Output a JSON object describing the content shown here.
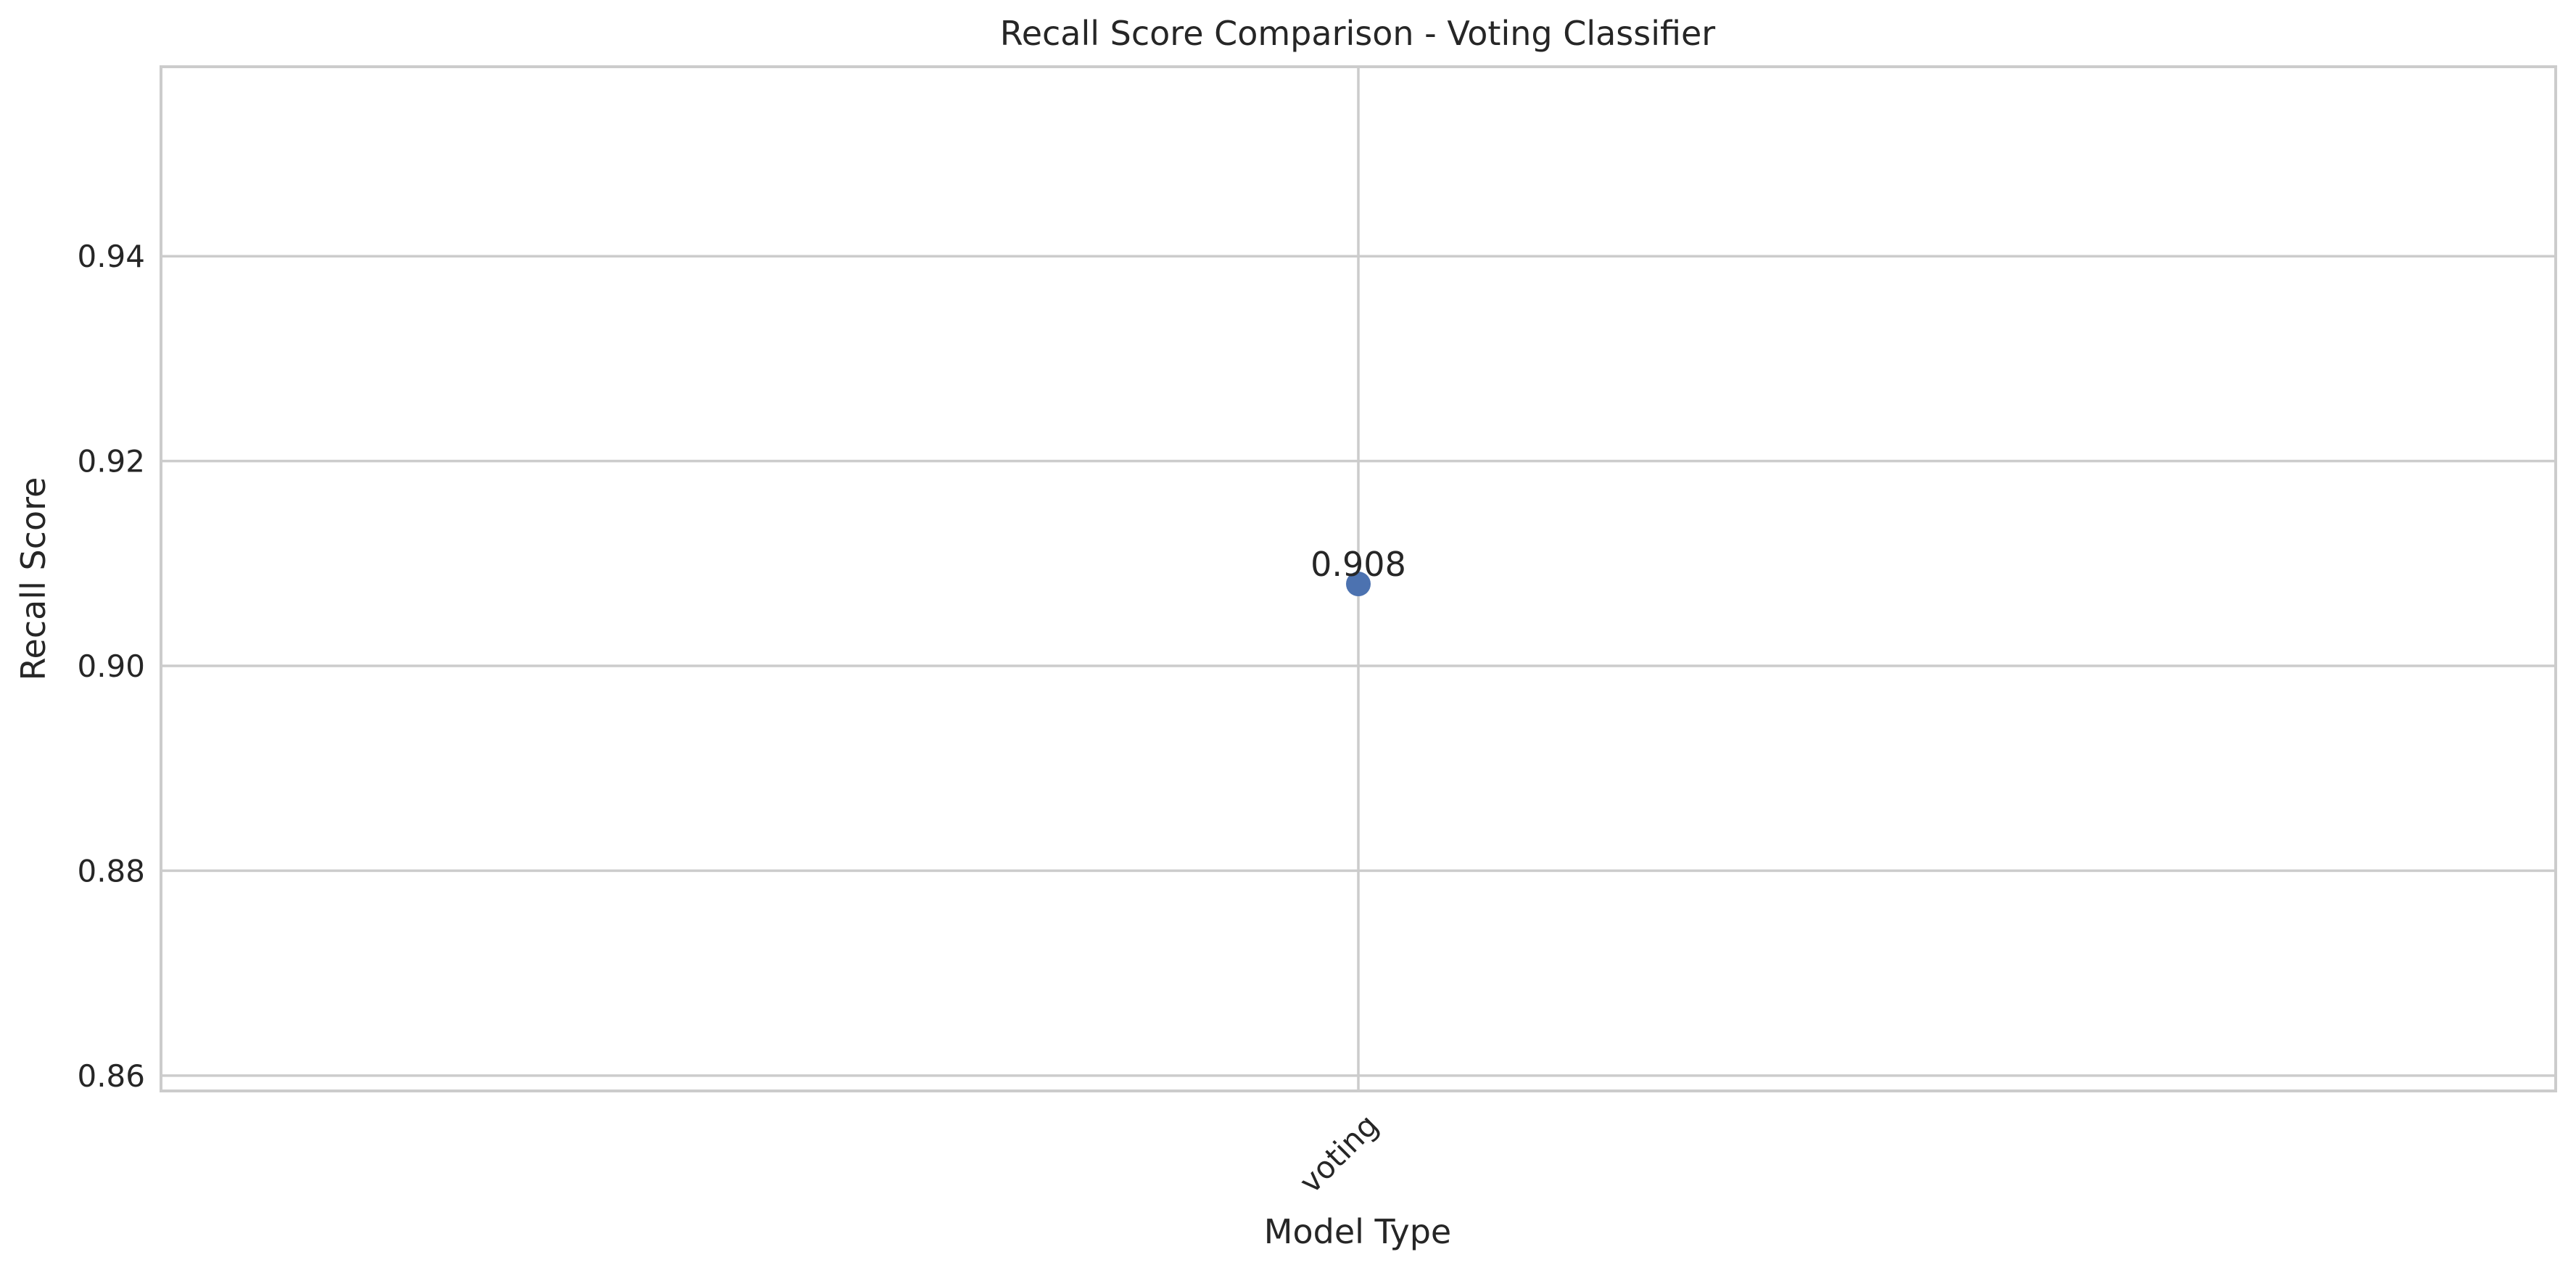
{
  "chart_data": {
    "type": "scatter",
    "title": "Recall Score Comparison - Voting Classifier",
    "xlabel": "Model Type",
    "ylabel": "Recall Score",
    "categories": [
      "voting"
    ],
    "series": [
      {
        "values": [
          0.908
        ],
        "data_labels": [
          "0.908"
        ],
        "color": "#4c72b0"
      }
    ],
    "ylim": [
      0.8585,
      0.9585
    ],
    "y_ticks": [
      0.86,
      0.88,
      0.9,
      0.92,
      0.94
    ],
    "y_tick_labels": [
      "0.86",
      "0.88",
      "0.90",
      "0.92",
      "0.94"
    ],
    "x_tick_rotation_deg": 45,
    "grid": true,
    "style": {
      "background": "#ffffff",
      "grid_color": "#cccccc",
      "text_color": "#262626"
    }
  }
}
